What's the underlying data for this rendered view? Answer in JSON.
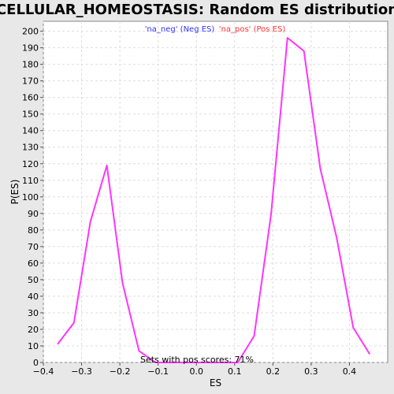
{
  "chart_data": {
    "type": "line",
    "title": "CELLULAR_HOMEOSTASIS: Random ES distribution",
    "xlabel": "ES",
    "ylabel": "P(ES)",
    "xlim": [
      -0.4,
      0.5
    ],
    "ylim": [
      0,
      206
    ],
    "xticks": [
      -0.4,
      -0.3,
      -0.2,
      -0.1,
      0.0,
      0.1,
      0.2,
      0.3,
      0.4
    ],
    "xtick_labels": [
      "−0.4",
      "−0.3",
      "−0.2",
      "−0.1",
      "0.0",
      "0.1",
      "0.2",
      "0.3",
      "0.4"
    ],
    "yticks": [
      0,
      10,
      20,
      30,
      40,
      50,
      60,
      70,
      80,
      90,
      100,
      110,
      120,
      130,
      140,
      150,
      160,
      170,
      180,
      190,
      200
    ],
    "grid": true,
    "legend": [
      {
        "label": "'na_neg' (Neg ES)",
        "color": "#3333ff"
      },
      {
        "label": "'na_pos' (Pos ES)",
        "color": "#ff3333"
      }
    ],
    "series": [
      {
        "color": "#ff33ff",
        "x": [
          -0.363,
          -0.32,
          -0.277,
          -0.234,
          -0.193,
          -0.15,
          -0.107,
          -0.065,
          -0.022,
          0.022,
          0.065,
          0.108,
          0.151,
          0.195,
          0.238,
          0.281,
          0.324,
          0.367,
          0.41,
          0.453
        ],
        "y": [
          11,
          24,
          85,
          119,
          48,
          7,
          0,
          0,
          0,
          0,
          0,
          0,
          16,
          89,
          196,
          188,
          117,
          75,
          21,
          5
        ]
      }
    ],
    "annotation": "Sets with pos scores: 71%"
  }
}
